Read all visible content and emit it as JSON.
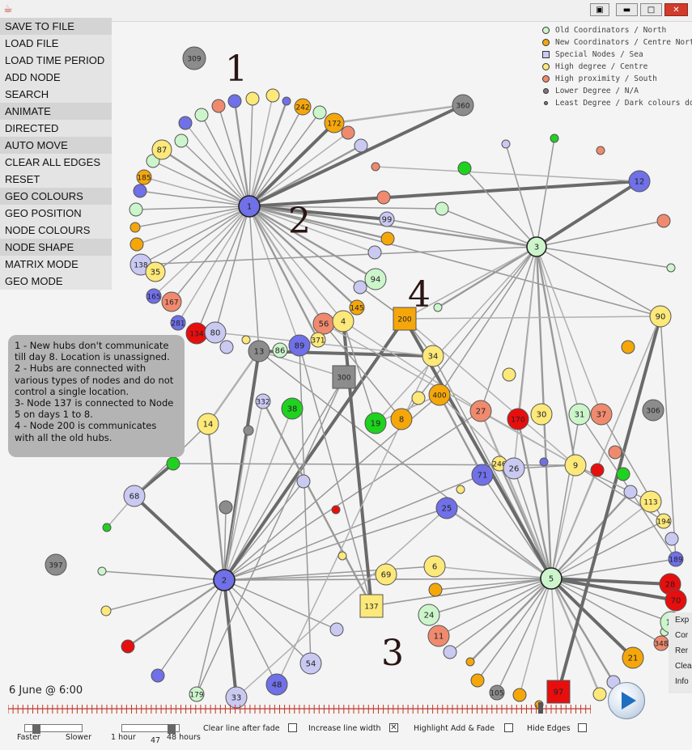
{
  "window": {
    "buttons": [
      {
        "name": "restore-window-button",
        "glyph": "▣"
      },
      {
        "name": "minimize-button",
        "glyph": "▬"
      },
      {
        "name": "maximize-button",
        "glyph": "□"
      },
      {
        "name": "close-button",
        "glyph": "✕"
      }
    ],
    "icon": "java-cup-icon"
  },
  "menu": [
    {
      "label": "SAVE TO FILE",
      "shade": "dark"
    },
    {
      "label": "LOAD FILE",
      "shade": "light"
    },
    {
      "label": "LOAD TIME PERIOD",
      "shade": "light"
    },
    {
      "label": "ADD NODE",
      "shade": "light"
    },
    {
      "label": "SEARCH",
      "shade": "light"
    },
    {
      "label": "ANIMATE",
      "shade": "dark"
    },
    {
      "label": "DIRECTED",
      "shade": "light"
    },
    {
      "label": "AUTO MOVE",
      "shade": "dark"
    },
    {
      "label": "CLEAR ALL EDGES",
      "shade": "light"
    },
    {
      "label": "RESET",
      "shade": "light"
    },
    {
      "label": "GEO COLOURS",
      "shade": "dark"
    },
    {
      "label": "GEO POSITION",
      "shade": "light"
    },
    {
      "label": "NODE COLOURS",
      "shade": "light"
    },
    {
      "label": "NODE SHAPE",
      "shade": "dark"
    },
    {
      "label": "MATRIX MODE",
      "shade": "light"
    },
    {
      "label": "GEO MODE",
      "shade": "light"
    }
  ],
  "notes": [
    "1 - New hubs don't communicate till day 8. Location is unassigned.",
    "2 - Hubs are connected with various types of nodes and do not control a single location.",
    "3- Node 137 is connected to Node 5 on days 1 to 8.",
    "4 - Node 200 is communicates with all the old hubs."
  ],
  "annotations": [
    "1",
    "2",
    "3",
    "4"
  ],
  "legend": [
    {
      "label": "Old Coordinators / North",
      "color": "#ccf5cc",
      "shape": "circle"
    },
    {
      "label": "New Coordinators / Centre North",
      "color": "#f5a70a",
      "shape": "circle"
    },
    {
      "label": "Special Nodes / Sea",
      "color": "#c9c9f2",
      "shape": "square"
    },
    {
      "label": "High degree / Centre",
      "color": "#fde87a",
      "shape": "circle"
    },
    {
      "label": "High proximity / South",
      "color": "#f08a6e",
      "shape": "circle"
    },
    {
      "label": "Lower Degree / N/A",
      "color": "#7a7a7a",
      "shape": "circle-small"
    },
    {
      "label": "Least Degree / Dark colours don't cl",
      "color": "#7a7a7a",
      "shape": "circle-tiny"
    }
  ],
  "colors": {
    "pale_green": "#ccf5cc",
    "orange": "#f5a70a",
    "lavender": "#c9c9f2",
    "yellow": "#fde87a",
    "salmon": "#f08a6e",
    "grey": "#8c8c8c",
    "blue": "#7070e8",
    "red": "#e80e0e",
    "green": "#1fd21f"
  },
  "graph": {
    "nodes": [
      {
        "label": "309",
        "color": "grey"
      },
      {
        "label": "360",
        "color": "grey"
      },
      {
        "label": "242",
        "color": "orange"
      },
      {
        "label": "172",
        "color": "orange"
      },
      {
        "label": "87",
        "color": "yellow"
      },
      {
        "label": "185",
        "color": "orange"
      },
      {
        "label": "1",
        "color": "blue"
      },
      {
        "label": "12",
        "color": "blue"
      },
      {
        "label": "99",
        "color": "lavender"
      },
      {
        "label": "3",
        "color": "pale_green"
      },
      {
        "label": "138",
        "color": "lavender"
      },
      {
        "label": "35",
        "color": "yellow"
      },
      {
        "label": "94",
        "color": "pale_green"
      },
      {
        "label": "165",
        "color": "blue"
      },
      {
        "label": "167",
        "color": "salmon"
      },
      {
        "label": "145",
        "color": "orange"
      },
      {
        "label": "200",
        "color": "orange",
        "shape": "square"
      },
      {
        "label": "90",
        "color": "yellow"
      },
      {
        "label": "281",
        "color": "blue"
      },
      {
        "label": "134",
        "color": "red"
      },
      {
        "label": "80",
        "color": "lavender"
      },
      {
        "label": "56",
        "color": "salmon"
      },
      {
        "label": "4",
        "color": "yellow"
      },
      {
        "label": "371",
        "color": "yellow"
      },
      {
        "label": "13",
        "color": "grey"
      },
      {
        "label": "86",
        "color": "pale_green"
      },
      {
        "label": "89",
        "color": "blue"
      },
      {
        "label": "34",
        "color": "yellow"
      },
      {
        "label": "300",
        "color": "grey",
        "shape": "square"
      },
      {
        "label": "332",
        "color": "lavender"
      },
      {
        "label": "38",
        "color": "green"
      },
      {
        "label": "400",
        "color": "orange"
      },
      {
        "label": "306",
        "color": "grey"
      },
      {
        "label": "14",
        "color": "yellow"
      },
      {
        "label": "19",
        "color": "green"
      },
      {
        "label": "8",
        "color": "orange"
      },
      {
        "label": "27",
        "color": "salmon"
      },
      {
        "label": "170",
        "color": "red"
      },
      {
        "label": "30",
        "color": "yellow"
      },
      {
        "label": "31",
        "color": "pale_green"
      },
      {
        "label": "37",
        "color": "salmon"
      },
      {
        "label": "246",
        "color": "yellow"
      },
      {
        "label": "26",
        "color": "lavender"
      },
      {
        "label": "9",
        "color": "yellow"
      },
      {
        "label": "71",
        "color": "blue"
      },
      {
        "label": "68",
        "color": "lavender"
      },
      {
        "label": "25",
        "color": "blue"
      },
      {
        "label": "113",
        "color": "yellow"
      },
      {
        "label": "194",
        "color": "yellow"
      },
      {
        "label": "189",
        "color": "blue"
      },
      {
        "label": "397",
        "color": "grey"
      },
      {
        "label": "2",
        "color": "blue"
      },
      {
        "label": "6",
        "color": "yellow"
      },
      {
        "label": "69",
        "color": "yellow"
      },
      {
        "label": "5",
        "color": "pale_green"
      },
      {
        "label": "28",
        "color": "red"
      },
      {
        "label": "70",
        "color": "red"
      },
      {
        "label": "137",
        "color": "yellow",
        "shape": "square"
      },
      {
        "label": "24",
        "color": "pale_green"
      },
      {
        "label": "11",
        "color": "salmon"
      },
      {
        "label": "10",
        "color": "pale_green"
      },
      {
        "label": "348",
        "color": "salmon"
      },
      {
        "label": "54",
        "color": "lavender"
      },
      {
        "label": "21",
        "color": "orange"
      },
      {
        "label": "48",
        "color": "blue"
      },
      {
        "label": "179",
        "color": "pale_green"
      },
      {
        "label": "33",
        "color": "lavender"
      },
      {
        "label": "105",
        "color": "grey"
      },
      {
        "label": "97",
        "color": "red",
        "shape": "square"
      }
    ]
  },
  "date": "6 June  @ 6:00",
  "controls": {
    "speed": {
      "faster": "Faster",
      "slower": "Slower",
      "fraction": 0.15
    },
    "window": {
      "min": "1 hour",
      "max": "48 hours",
      "value": "47",
      "fraction": 0.93
    },
    "checkboxes": [
      {
        "label": "Clear line after fade",
        "checked": false
      },
      {
        "label": "Increase line width",
        "checked": true
      },
      {
        "label": "Highlight Add & Fade",
        "checked": false
      },
      {
        "label": "Hide Edges",
        "checked": false
      }
    ]
  },
  "side_panel": [
    "Exp",
    "Cor",
    "Rer",
    "Clea",
    "Info"
  ]
}
